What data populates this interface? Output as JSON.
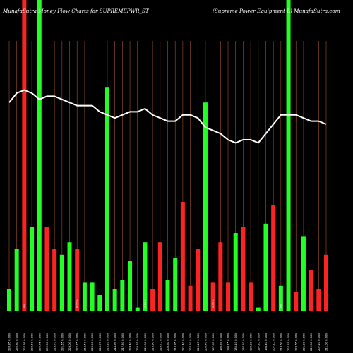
{
  "header": {
    "left": "MunafaSutra Money Flow  Charts for SUPREMEPWR_ST",
    "right": "(Supreme   Power Equipment L) MunafaSutra.com"
  },
  "chart_data": {
    "type": "bar",
    "colors": {
      "up": "#22ff22",
      "down": "#ff2222",
      "line": "#ffffff",
      "grid": "#a0522d",
      "background": "#000000"
    },
    "y_range": [
      0,
      100
    ],
    "categories": [
      "233.95 0.00%",
      "232.80 0.00%",
      "227.95 0.00%",
      "224.50 0.00%",
      "235.75 0.00%",
      "232.00 0.00%",
      "228.70 0.00%",
      "231.55 0.00%",
      "228.00 0.00%",
      "222.25 0.00%",
      "218.40 0.00%",
      "226.50 0.00%",
      "223.75 0.00%",
      "220.10 0.00%",
      "214.95 0.00%",
      "217.30 0.00%",
      "224.40 0.00%",
      "228.55 0.00%",
      "221.80 0.00%",
      "218.90 0.00%",
      "214.75 0.00%",
      "208.60 0.00%",
      "216.95 0.00%",
      "221.40 0.00%",
      "227.20 0.00%",
      "213.15 0.00%",
      "205.40 0.00%",
      "197.65 0.00%",
      "196.35 0.00%",
      "193.15 0.00%",
      "185.10 0.00%",
      "187.50 0.00%",
      "184.20 0.00%",
      "197.35 0.00%",
      "194.40 0.00%",
      "207.15 0.00%",
      "218.60 0.00%",
      "227.55 0.00%",
      "223.65 0.00%",
      "221.20 0.00%",
      "212.80 0.00%",
      "207.10 0.00%",
      "211.00 0.00%"
    ],
    "directions": [
      "up",
      "up",
      "down",
      "up",
      "up",
      "down",
      "down",
      "up",
      "up",
      "down",
      "up",
      "up",
      "up",
      "green_tall",
      "up",
      "up",
      "up",
      "up",
      "up",
      "down",
      "down",
      "up",
      "up",
      "down",
      "down",
      "down",
      "up",
      "red_tall",
      "down",
      "down",
      "up",
      "down",
      "down",
      "up",
      "up",
      "down",
      "up",
      "up",
      "down",
      "up",
      "down",
      "down",
      "down"
    ],
    "values": [
      7,
      20,
      100,
      27,
      100,
      27,
      20,
      18,
      22,
      20,
      9,
      9,
      5,
      72,
      7,
      10,
      16,
      1,
      22,
      7,
      22,
      10,
      17,
      35,
      8,
      20,
      67,
      9,
      22,
      9,
      25,
      27,
      9,
      1,
      28,
      34,
      8,
      100,
      6,
      24,
      13,
      7,
      18
    ],
    "line_values": [
      67,
      70,
      71,
      70,
      68,
      69,
      69,
      68,
      67,
      66,
      66,
      66,
      64,
      63,
      62,
      63,
      64,
      64,
      65,
      63,
      62,
      61,
      61,
      63,
      63,
      62,
      59,
      58,
      57,
      55,
      54,
      55,
      55,
      54,
      57,
      60,
      63,
      63,
      63,
      62,
      61,
      61,
      60
    ],
    "markers": [
      "0%",
      "0.01%",
      "0.16%",
      "0.05%",
      "0%"
    ]
  }
}
